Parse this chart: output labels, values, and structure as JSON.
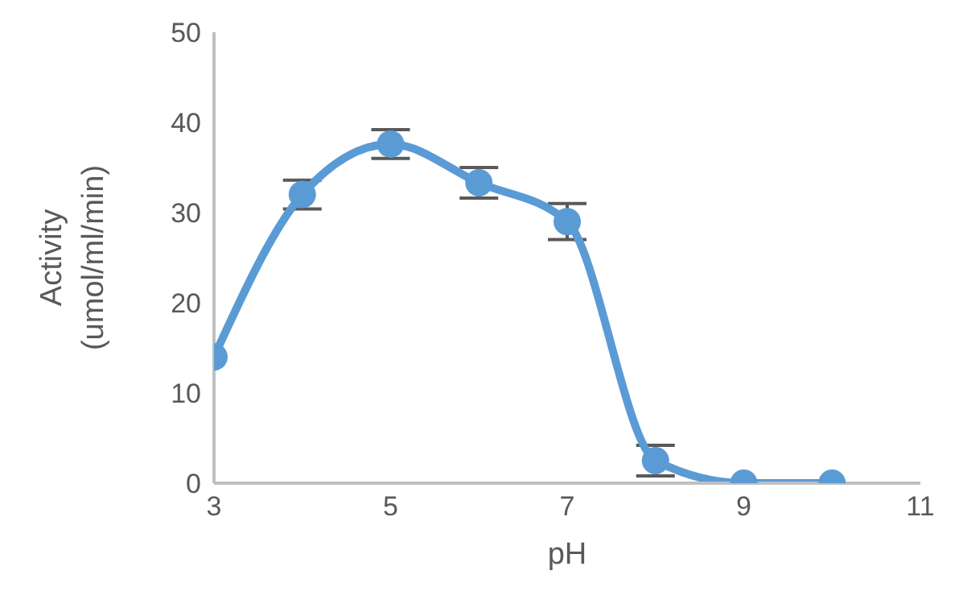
{
  "chart_data": {
    "type": "line",
    "xlabel": "pH",
    "ylabel": "Activity (umol/ml/min)",
    "x": [
      3,
      4,
      5,
      6,
      7,
      8,
      9,
      10
    ],
    "series": [
      {
        "color": "#5b9bd5",
        "values": [
          14,
          32,
          37.6,
          33.3,
          29,
          2.5,
          0,
          0
        ],
        "errors": [
          null,
          1.6,
          1.6,
          1.7,
          2,
          1.7,
          null,
          null
        ]
      }
    ],
    "xlim": [
      3,
      11
    ],
    "xticks": [
      3,
      5,
      7,
      9,
      11
    ],
    "ylim": [
      0,
      50
    ],
    "yticks": [
      0,
      10,
      20,
      30,
      40,
      50
    ],
    "grid": false,
    "legend": false,
    "marker": "circle",
    "line_style": "solid"
  }
}
